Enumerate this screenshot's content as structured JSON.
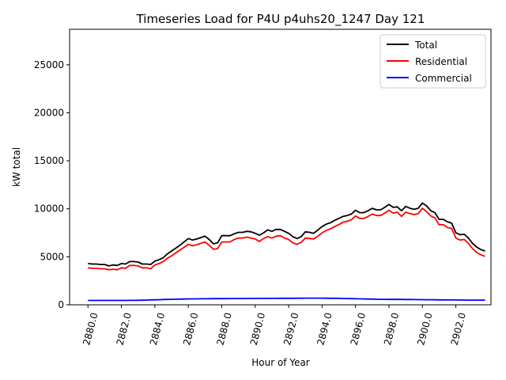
{
  "chart_data": {
    "type": "line",
    "title": "Timeseries Load for P4U p4uhs20_1247  Day 121",
    "xlabel": "Hour of Year",
    "ylabel": "kW total",
    "xlim": [
      2878.9,
      2904.1
    ],
    "ylim": [
      0,
      28700
    ],
    "x_ticks": [
      2880,
      2882,
      2884,
      2886,
      2888,
      2890,
      2892,
      2894,
      2896,
      2898,
      2900,
      2902
    ],
    "x_tick_labels": [
      "2880.0",
      "2882.0",
      "2884.0",
      "2886.0",
      "2888.0",
      "2890.0",
      "2892.0",
      "2894.0",
      "2896.0",
      "2898.0",
      "2900.0",
      "2902.0"
    ],
    "y_ticks": [
      0,
      5000,
      10000,
      15000,
      20000,
      25000
    ],
    "y_tick_labels": [
      "0",
      "5000",
      "10000",
      "15000",
      "20000",
      "25000"
    ],
    "legend_position": "top-right",
    "x": [
      2880.0,
      2880.25,
      2880.5,
      2880.75,
      2881.0,
      2881.25,
      2881.5,
      2881.75,
      2882.0,
      2882.25,
      2882.5,
      2882.75,
      2883.0,
      2883.25,
      2883.5,
      2883.75,
      2884.0,
      2884.25,
      2884.5,
      2884.75,
      2885.0,
      2885.25,
      2885.5,
      2885.75,
      2886.0,
      2886.25,
      2886.5,
      2886.75,
      2887.0,
      2887.25,
      2887.5,
      2887.75,
      2888.0,
      2888.25,
      2888.5,
      2888.75,
      2889.0,
      2889.25,
      2889.5,
      2889.75,
      2890.0,
      2890.25,
      2890.5,
      2890.75,
      2891.0,
      2891.25,
      2891.5,
      2891.75,
      2892.0,
      2892.25,
      2892.5,
      2892.75,
      2893.0,
      2893.25,
      2893.5,
      2893.75,
      2894.0,
      2894.25,
      2894.5,
      2894.75,
      2895.0,
      2895.25,
      2895.5,
      2895.75,
      2896.0,
      2896.25,
      2896.5,
      2896.75,
      2897.0,
      2897.25,
      2897.5,
      2897.75,
      2898.0,
      2898.25,
      2898.5,
      2898.75,
      2899.0,
      2899.25,
      2899.5,
      2899.75,
      2900.0,
      2900.25,
      2900.5,
      2900.75,
      2901.0,
      2901.25,
      2901.5,
      2901.75,
      2902.0,
      2902.25,
      2902.5,
      2902.75,
      2903.0,
      2903.25,
      2903.5,
      2903.75
    ],
    "series": [
      {
        "name": "Total",
        "color": "#000000",
        "values": [
          4300,
          4250,
          4250,
          4200,
          4200,
          4050,
          4150,
          4100,
          4300,
          4250,
          4500,
          4500,
          4450,
          4250,
          4250,
          4200,
          4550,
          4700,
          4900,
          5300,
          5600,
          5900,
          6200,
          6550,
          6900,
          6750,
          6850,
          7000,
          7150,
          6800,
          6350,
          6450,
          7200,
          7200,
          7200,
          7400,
          7550,
          7550,
          7650,
          7600,
          7450,
          7250,
          7500,
          7800,
          7650,
          7850,
          7850,
          7650,
          7450,
          7100,
          6900,
          7100,
          7600,
          7550,
          7450,
          7800,
          8150,
          8400,
          8550,
          8800,
          9000,
          9200,
          9300,
          9450,
          9850,
          9600,
          9600,
          9800,
          10050,
          9900,
          9900,
          10150,
          10450,
          10150,
          10200,
          9800,
          10250,
          10050,
          9950,
          10050,
          10600,
          10300,
          9800,
          9600,
          8900,
          8900,
          8650,
          8500,
          7500,
          7300,
          7350,
          6950,
          6400,
          6000,
          5750,
          5600
        ]
      },
      {
        "name": "Residential",
        "color": "#ff0000",
        "values": [
          3850,
          3800,
          3800,
          3750,
          3750,
          3650,
          3700,
          3650,
          3850,
          3800,
          4100,
          4100,
          4050,
          3850,
          3850,
          3750,
          4150,
          4300,
          4500,
          4850,
          5100,
          5400,
          5700,
          6000,
          6300,
          6150,
          6250,
          6400,
          6550,
          6200,
          5800,
          5850,
          6550,
          6550,
          6550,
          6800,
          6950,
          6950,
          7050,
          6950,
          6850,
          6600,
          6900,
          7100,
          6950,
          7150,
          7200,
          6950,
          6800,
          6450,
          6300,
          6500,
          6950,
          6900,
          6850,
          7150,
          7500,
          7750,
          7900,
          8150,
          8350,
          8600,
          8700,
          8850,
          9250,
          9000,
          9000,
          9200,
          9450,
          9300,
          9300,
          9550,
          9850,
          9550,
          9650,
          9200,
          9650,
          9500,
          9400,
          9500,
          10050,
          9700,
          9250,
          9050,
          8350,
          8350,
          8050,
          7950,
          6950,
          6750,
          6800,
          6400,
          5850,
          5450,
          5200,
          5050
        ]
      },
      {
        "name": "Commercial",
        "color": "#0000ff",
        "values": [
          450,
          450,
          450,
          450,
          450,
          450,
          450,
          450,
          450,
          450,
          460,
          460,
          470,
          480,
          490,
          500,
          520,
          530,
          550,
          560,
          570,
          580,
          590,
          600,
          610,
          615,
          620,
          625,
          630,
          635,
          640,
          640,
          645,
          645,
          650,
          650,
          655,
          655,
          660,
          660,
          660,
          665,
          665,
          670,
          670,
          670,
          675,
          675,
          680,
          680,
          685,
          685,
          690,
          690,
          690,
          690,
          690,
          685,
          680,
          675,
          670,
          660,
          650,
          640,
          630,
          620,
          610,
          600,
          590,
          580,
          570,
          565,
          560,
          560,
          560,
          560,
          555,
          550,
          545,
          540,
          535,
          530,
          525,
          520,
          515,
          510,
          505,
          500,
          500,
          495,
          495,
          490,
          490,
          490,
          490,
          490
        ]
      }
    ]
  }
}
